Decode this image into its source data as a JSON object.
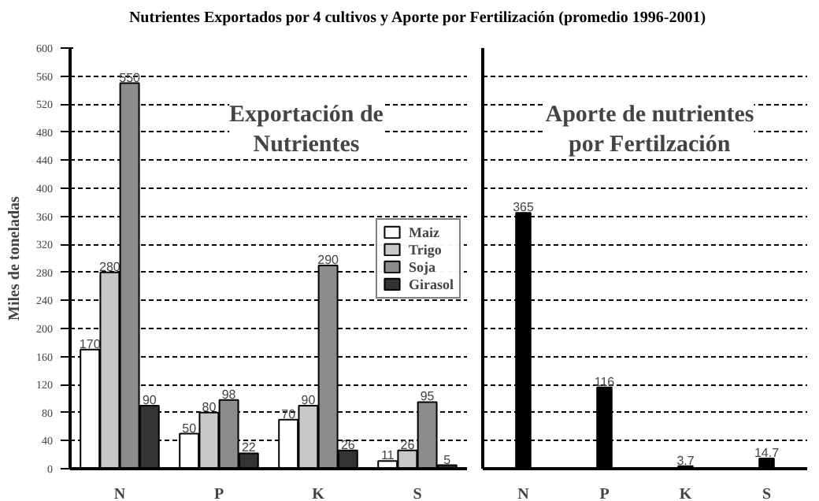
{
  "chart_data": [
    {
      "type": "bar",
      "title": "Nutrientes Exportados por 4 cultivos y Aporte por Fertilización (promedio 1996-2001)",
      "ylabel": "Miles de toneladas",
      "categories": [
        "N",
        "P",
        "K",
        "S"
      ],
      "series": [
        {
          "name": "Maiz",
          "color": "#ffffff",
          "values": [
            170,
            50,
            70,
            11
          ]
        },
        {
          "name": "Trigo",
          "color": "#c8c8c8",
          "values": [
            280,
            80,
            90,
            26
          ]
        },
        {
          "name": "Soja",
          "color": "#8c8c8c",
          "values": [
            550,
            98,
            290,
            95
          ]
        },
        {
          "name": "Girasol",
          "color": "#333333",
          "values": [
            90,
            22,
            26,
            5
          ]
        }
      ],
      "ylim": [
        0,
        600
      ],
      "yticks": [
        0,
        40,
        80,
        120,
        160,
        200,
        240,
        280,
        320,
        360,
        400,
        440,
        480,
        520,
        560,
        600
      ],
      "grid": "y",
      "legend": "right",
      "data_labels": true,
      "annotations": [
        "Exportación de\nNutrientes"
      ]
    },
    {
      "type": "bar",
      "categories": [
        "N",
        "P",
        "K",
        "S"
      ],
      "series": [
        {
          "color": "#000000",
          "values": [
            365,
            116,
            3.7,
            14.7
          ]
        }
      ],
      "ylim": [
        0,
        600
      ],
      "yticks": [
        0,
        40,
        80,
        120,
        160,
        200,
        240,
        280,
        320,
        360,
        400,
        440,
        480,
        520,
        560,
        600
      ],
      "grid": "y",
      "tick_labels": "x",
      "data_labels": true,
      "annotations": [
        "Aporte de nutrientes\npor Fertilzación"
      ]
    }
  ]
}
